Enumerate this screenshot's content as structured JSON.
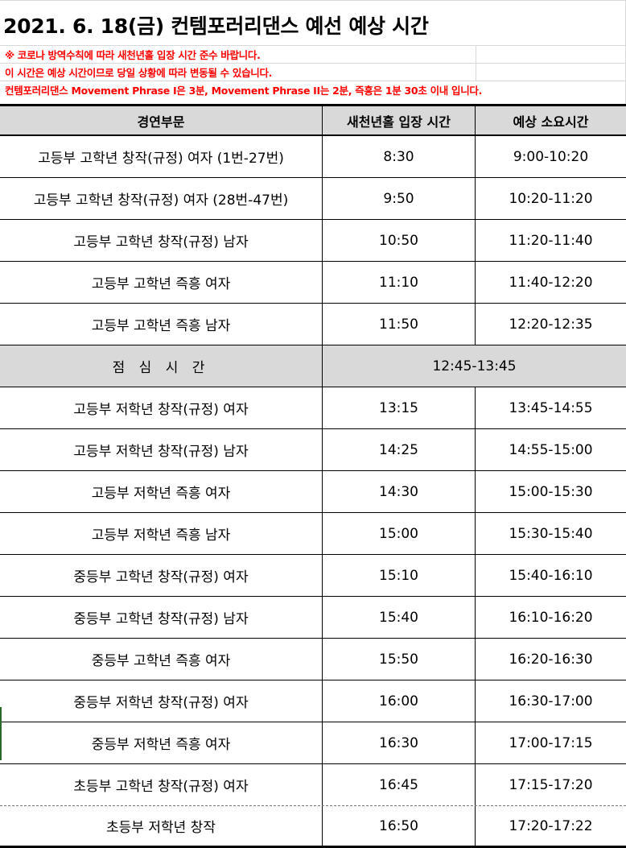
{
  "title": "2021. 6. 18(금) 컨템포러리댄스 예선 예상 시간",
  "notes": [
    "※ 코로나 방역수칙에 따라 새천년홀 입장 시간 준수 바랍니다.",
    "이 시간은 예상 시간이므로 당일 상황에 따라 변동될 수 있습니다.",
    "컨템포러리댄스 Movement Phrase I은 3분, Movement Phrase II는 2분, 즉흥은 1분 30초 이내 입니다."
  ],
  "table": {
    "headers": [
      "경연부문",
      "새천년홀 입장 시간",
      "예상 소요시간"
    ],
    "rows": [
      {
        "division": "고등부 고학년 창작(규정) 여자 (1번-27번)",
        "entry": "8:30",
        "duration": "9:00-10:20"
      },
      {
        "division": "고등부 고학년 창작(규정) 여자 (28번-47번)",
        "entry": "9:50",
        "duration": "10:20-11:20"
      },
      {
        "division": "고등부 고학년 창작(규정) 남자",
        "entry": "10:50",
        "duration": "11:20-11:40"
      },
      {
        "division": "고등부 고학년 즉흥 여자",
        "entry": "11:10",
        "duration": "11:40-12:20"
      },
      {
        "division": "고등부 고학년 즉흥 남자",
        "entry": "11:50",
        "duration": "12:20-12:35"
      }
    ],
    "lunch": {
      "label": "점 심 시 간",
      "time": "12:45-13:45"
    },
    "rows2": [
      {
        "division": "고등부 저학년 창작(규정) 여자",
        "entry": "13:15",
        "duration": "13:45-14:55"
      },
      {
        "division": "고등부 저학년 창작(규정) 남자",
        "entry": "14:25",
        "duration": "14:55-15:00"
      },
      {
        "division": "고등부 저학년 즉흥 여자",
        "entry": "14:30",
        "duration": "15:00-15:30"
      },
      {
        "division": "고등부 저학년 즉흥 남자",
        "entry": "15:00",
        "duration": "15:30-15:40"
      },
      {
        "division": "중등부 고학년 창작(규정) 여자",
        "entry": "15:10",
        "duration": "15:40-16:10"
      },
      {
        "division": "중등부 고학년 창작(규정) 남자",
        "entry": "15:40",
        "duration": "16:10-16:20"
      },
      {
        "division": "중등부 고학년 즉흥 여자",
        "entry": "15:50",
        "duration": "16:20-16:30"
      },
      {
        "division": "중등부 저학년 창작(규정) 여자",
        "entry": "16:00",
        "duration": "16:30-17:00"
      },
      {
        "division": "중등부 저학년 즉흥 여자",
        "entry": "16:30",
        "duration": "17:00-17:15"
      },
      {
        "division": "초등부 고학년 창작(규정) 여자",
        "entry": "16:45",
        "duration": "17:15-17:20"
      },
      {
        "division": "초등부 저학년 창작",
        "entry": "16:50",
        "duration": "17:20-17:22"
      }
    ]
  }
}
